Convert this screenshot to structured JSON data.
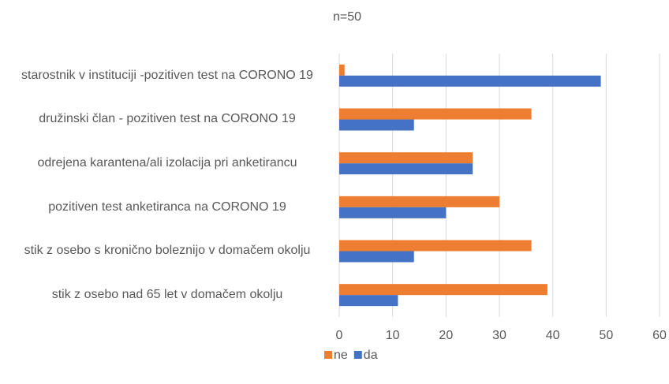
{
  "chart_data": {
    "type": "bar",
    "orientation": "horizontal",
    "title": "n=50",
    "categories": [
      "starostnik v instituciji -pozitiven test na CORONO 19",
      "družinski član - pozitiven test na CORONO 19",
      "odrejena karantena/ali izolacija pri anketirancu",
      "pozitiven test anketiranca na CORONO 19",
      "stik z osebo s kronično boleznijo v domačem okolju",
      "stik z osebo nad 65 let v domačem okolju"
    ],
    "series": [
      {
        "name": "ne",
        "color": "#ed7d31",
        "values": [
          1,
          36,
          25,
          30,
          36,
          39
        ]
      },
      {
        "name": "da",
        "color": "#4472c4",
        "values": [
          49,
          14,
          25,
          20,
          14,
          11
        ]
      }
    ],
    "xlim": [
      0,
      60
    ],
    "xticks": [
      0,
      10,
      20,
      30,
      40,
      50,
      60
    ],
    "grid": true,
    "legend": "bottom"
  }
}
